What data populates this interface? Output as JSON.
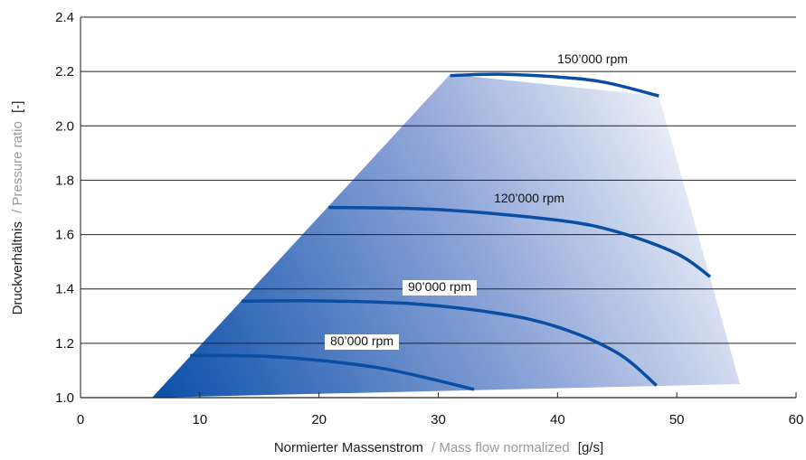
{
  "chart_data": {
    "type": "line",
    "xlabel": {
      "primary": "Normierter Massenstrom",
      "secondary": "/ Mass flow normalized",
      "unit": "[g/s]"
    },
    "ylabel": {
      "primary": "Druckverhältnis",
      "secondary": "/ Pressure ratio",
      "unit": "[-]"
    },
    "xlim": [
      0,
      60
    ],
    "ylim": [
      1.0,
      2.4
    ],
    "x_ticks": [
      "0",
      "10",
      "20",
      "30",
      "40",
      "50",
      "60"
    ],
    "y_ticks": [
      "1.0",
      "1.2",
      "1.4",
      "1.6",
      "1.8",
      "2.0",
      "2.2",
      "2.4"
    ],
    "grid": "horizontal",
    "operating_region": {
      "boundary": [
        [
          6,
          1.0
        ],
        [
          31,
          2.19
        ],
        [
          48.5,
          2.11
        ],
        [
          55.3,
          1.05
        ]
      ],
      "color_dark": "#0a4fa8",
      "color_light": "#ffffff"
    },
    "line_color": "#0a4ea3",
    "series": [
      {
        "name": "80’000 rpm",
        "x": [
          9.2,
          15,
          20,
          25,
          29,
          33
        ],
        "y": [
          1.155,
          1.153,
          1.137,
          1.11,
          1.073,
          1.03
        ]
      },
      {
        "name": "90’000 rpm",
        "x": [
          13.5,
          20,
          28,
          35,
          40,
          45,
          48.3
        ],
        "y": [
          1.355,
          1.356,
          1.345,
          1.31,
          1.26,
          1.165,
          1.045
        ]
      },
      {
        "name": "120’000 rpm",
        "x": [
          20.8,
          30,
          40,
          45,
          50,
          52.8
        ],
        "y": [
          1.7,
          1.692,
          1.653,
          1.61,
          1.53,
          1.445
        ]
      },
      {
        "name": "150’000 rpm",
        "x": [
          31,
          35,
          40,
          44,
          48.5
        ],
        "y": [
          2.185,
          2.19,
          2.18,
          2.16,
          2.11
        ]
      }
    ]
  }
}
